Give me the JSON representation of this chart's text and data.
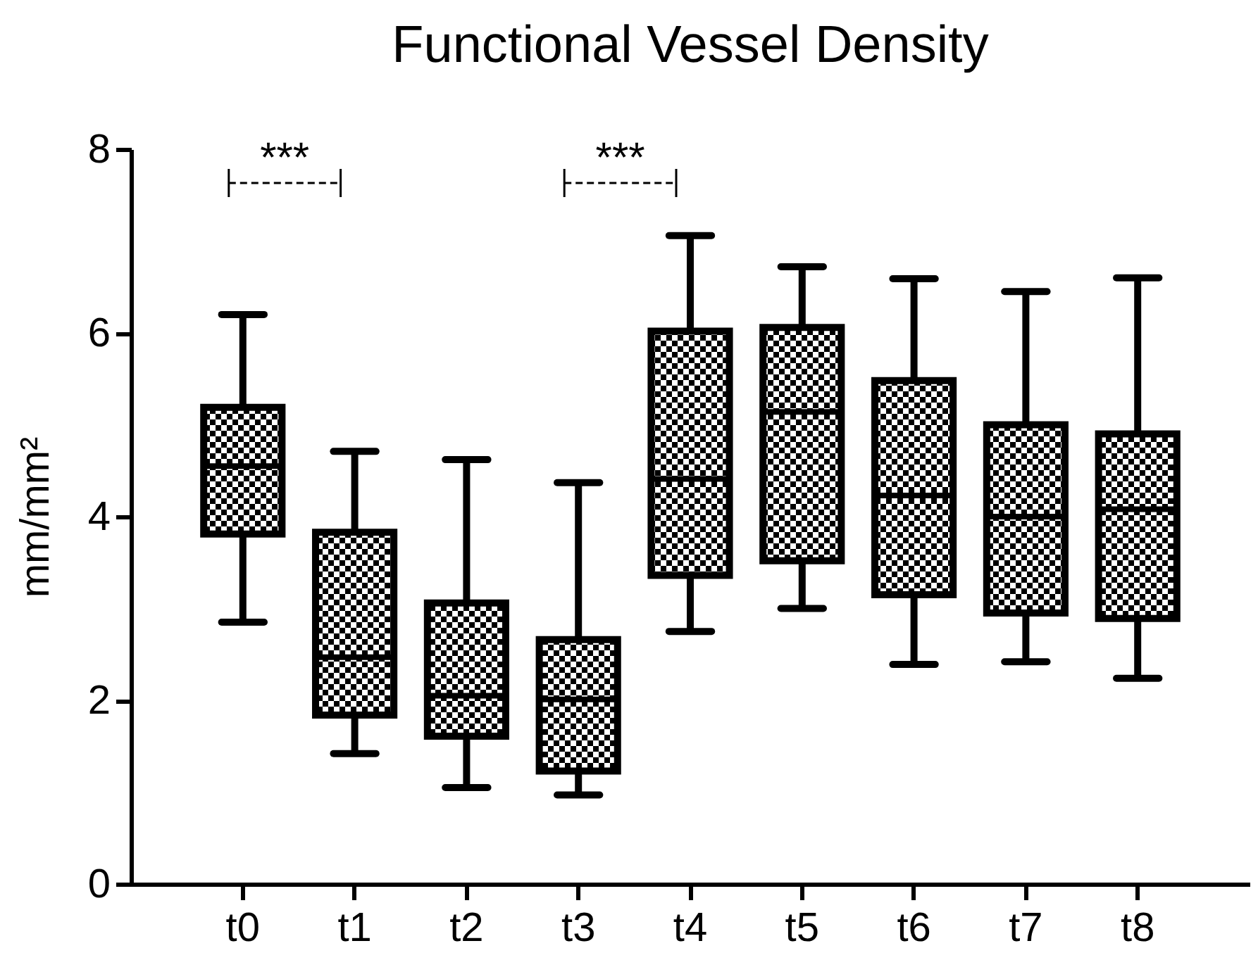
{
  "chart_data": {
    "type": "box",
    "title": "Functional Vessel Density",
    "ylabel": "mm/mm²",
    "categories": [
      "t0",
      "t1",
      "t2",
      "t3",
      "t4",
      "t5",
      "t6",
      "t7",
      "t8"
    ],
    "boxes": [
      {
        "low": 2.85,
        "q1": 3.81,
        "median": 4.55,
        "q3": 5.19,
        "high": 6.2
      },
      {
        "low": 1.42,
        "q1": 1.84,
        "median": 2.47,
        "q3": 3.83,
        "high": 4.71
      },
      {
        "low": 1.05,
        "q1": 1.61,
        "median": 2.05,
        "q3": 3.06,
        "high": 4.62
      },
      {
        "low": 0.97,
        "q1": 1.23,
        "median": 2.01,
        "q3": 2.66,
        "high": 4.37
      },
      {
        "low": 2.75,
        "q1": 3.36,
        "median": 4.41,
        "q3": 6.02,
        "high": 7.06
      },
      {
        "low": 3.0,
        "q1": 3.52,
        "median": 5.14,
        "q3": 6.06,
        "high": 6.72
      },
      {
        "low": 2.39,
        "q1": 3.15,
        "median": 4.23,
        "q3": 5.48,
        "high": 6.59
      },
      {
        "low": 2.42,
        "q1": 2.95,
        "median": 4.0,
        "q3": 5.0,
        "high": 6.45
      },
      {
        "low": 2.24,
        "q1": 2.89,
        "median": 4.08,
        "q3": 4.9,
        "high": 6.6
      }
    ],
    "ylim": [
      0,
      8
    ],
    "yticks": [
      0,
      2,
      4,
      6,
      8
    ],
    "annotations": [
      "***",
      "***"
    ]
  }
}
